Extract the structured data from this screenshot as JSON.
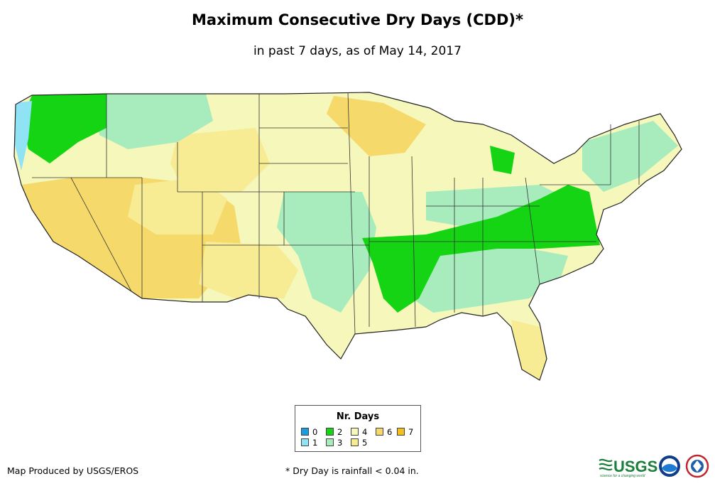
{
  "title": "Maximum Consecutive Dry Days (CDD)*",
  "subtitle": "in past 7 days, as of May 14, 2017",
  "legend": {
    "title": "Nr. Days",
    "items": [
      {
        "label": "0",
        "color": "#1b9be0"
      },
      {
        "label": "1",
        "color": "#8fe3f5"
      },
      {
        "label": "2",
        "color": "#14d414"
      },
      {
        "label": "3",
        "color": "#a8ecbe"
      },
      {
        "label": "4",
        "color": "#f6f7ba"
      },
      {
        "label": "5",
        "color": "#f7ec93"
      },
      {
        "label": "6",
        "color": "#f6d96b"
      },
      {
        "label": "7",
        "color": "#f5c01c"
      }
    ]
  },
  "credit": "Map Produced by USGS/EROS",
  "footnote": "* Dry Day is rainfall < 0.04 in.",
  "logos": {
    "usgs": "USGS",
    "usgs_tagline": "science for a changing world"
  }
}
